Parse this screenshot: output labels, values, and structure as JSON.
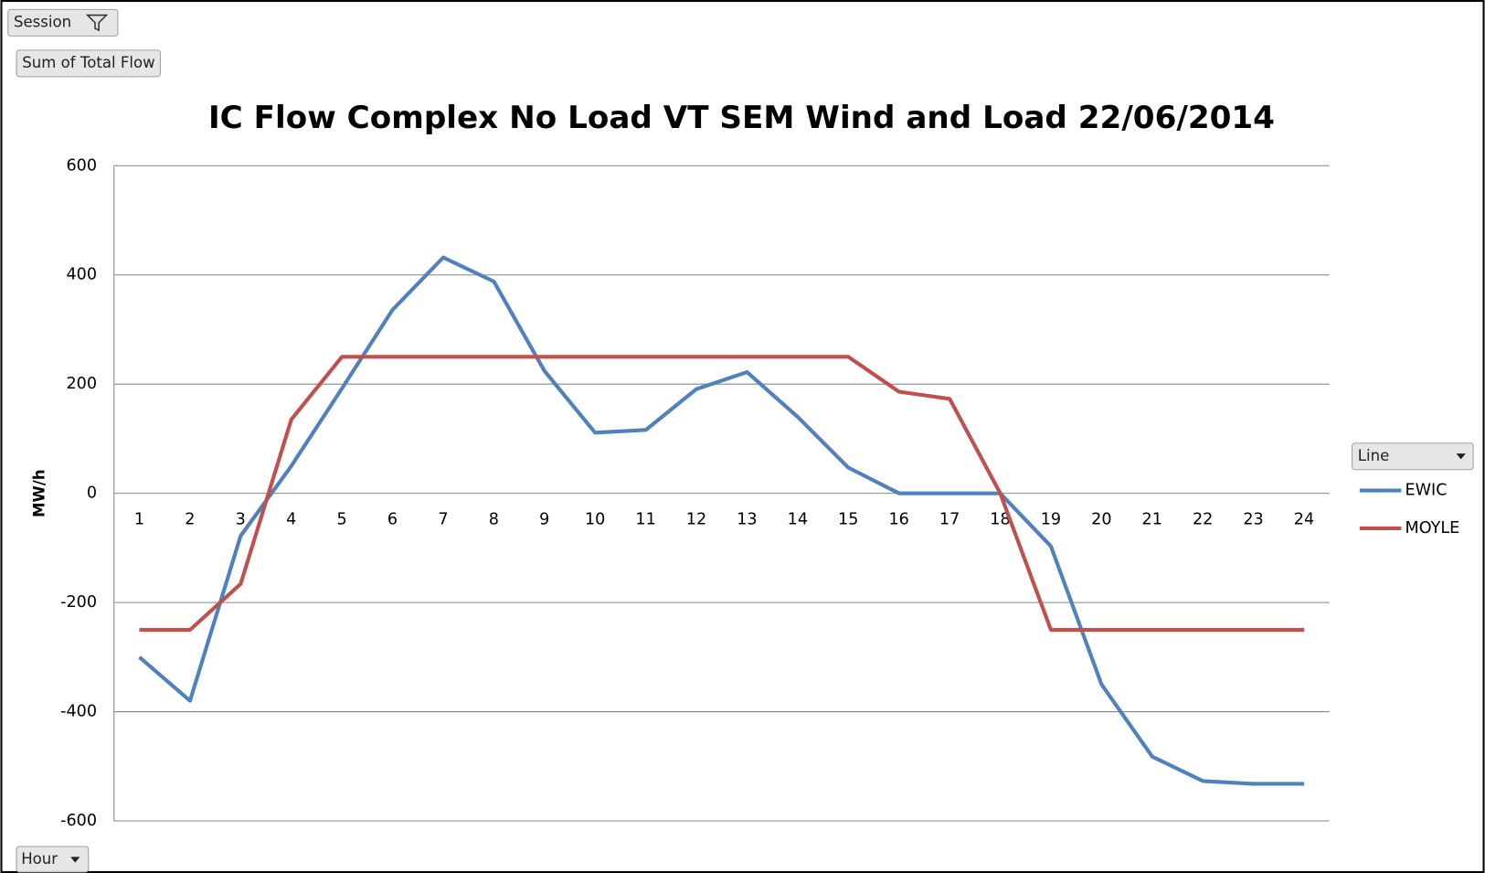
{
  "controls": {
    "filter_field": "Session",
    "value_field": "Sum of Total Flow",
    "axis_field": "Hour",
    "legend_field": "Line"
  },
  "chart_data": {
    "type": "line",
    "title": "IC Flow Complex No Load VT SEM Wind and Load 22/06/2014",
    "y_label": "MW/h",
    "categories": [
      "1",
      "2",
      "3",
      "4",
      "5",
      "6",
      "7",
      "8",
      "9",
      "10",
      "11",
      "12",
      "13",
      "14",
      "15",
      "16",
      "17",
      "18",
      "19",
      "20",
      "21",
      "22",
      "23",
      "24"
    ],
    "series": [
      {
        "name": "EWIC",
        "color": "#4f81bd",
        "values": [
          -300,
          -380,
          -78,
          50,
          192,
          336,
          432,
          388,
          224,
          111,
          116,
          191,
          222,
          140,
          47,
          0,
          0,
          0,
          -97,
          -350,
          -482,
          -527,
          -532,
          -532
        ]
      },
      {
        "name": "MOYLE",
        "color": "#c0504d",
        "values": [
          -250,
          -250,
          -166,
          135,
          250,
          250,
          250,
          250,
          250,
          250,
          250,
          250,
          250,
          250,
          250,
          186,
          173,
          0,
          -250,
          -250,
          -250,
          -250,
          -250,
          -250
        ]
      }
    ],
    "ylim": [
      -600,
      600
    ],
    "yticks": [
      -600,
      -400,
      -200,
      0,
      200,
      400,
      600
    ],
    "grid": true,
    "legend": "right"
  }
}
